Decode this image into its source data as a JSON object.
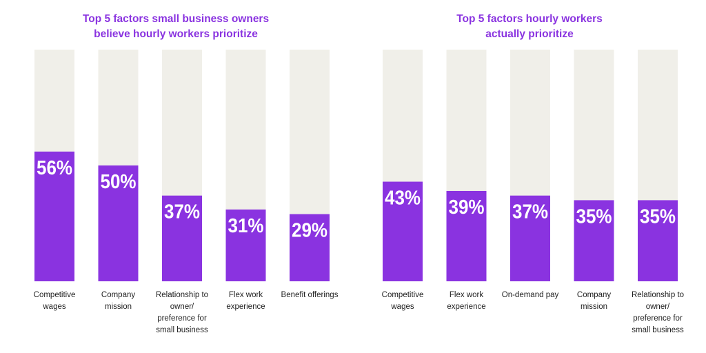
{
  "colors": {
    "bar": "#8a33e0",
    "track": "#f0efe9",
    "title": "#8a33e0",
    "label": "#222222"
  },
  "chart_data": [
    {
      "type": "bar",
      "title_lines": [
        "Top 5 factors small business owners",
        "believe hourly workers prioritize"
      ],
      "categories": [
        [
          "Competitive",
          "wages"
        ],
        [
          "Company",
          "mission"
        ],
        [
          "Relationship to",
          "owner/",
          "preference for",
          "small business"
        ],
        [
          "Flex work",
          "experience"
        ],
        [
          "Benefit offerings"
        ]
      ],
      "values": [
        56,
        50,
        37,
        31,
        29
      ],
      "value_labels": [
        "56%",
        "50%",
        "37%",
        "31%",
        "29%"
      ],
      "ylim": [
        0,
        100
      ]
    },
    {
      "type": "bar",
      "title_lines": [
        "Top 5 factors hourly workers",
        "actually prioritize"
      ],
      "categories": [
        [
          "Competitive",
          "wages"
        ],
        [
          "Flex work",
          "experience"
        ],
        [
          "On-demand pay"
        ],
        [
          "Company",
          "mission"
        ],
        [
          "Relationship to",
          "owner/",
          "preference for",
          "small business"
        ]
      ],
      "values": [
        43,
        39,
        37,
        35,
        35
      ],
      "value_labels": [
        "43%",
        "39%",
        "37%",
        "35%",
        "35%"
      ],
      "ylim": [
        0,
        100
      ]
    }
  ]
}
